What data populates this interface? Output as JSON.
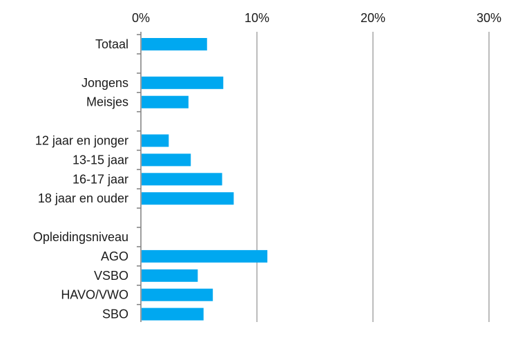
{
  "chart_data": {
    "type": "bar",
    "orientation": "horizontal",
    "title": "",
    "xlabel": "",
    "ylabel": "",
    "xlim": [
      0,
      30
    ],
    "xticks": [
      "0%",
      "10%",
      "20%",
      "30%"
    ],
    "xtick_values": [
      0,
      10,
      20,
      30
    ],
    "grid": true,
    "axis_position": "top",
    "bar_color": "#00a8f0",
    "categories": [
      "Totaal",
      "",
      "Jongens",
      "Meisjes",
      "",
      "12 jaar en jonger",
      "13-15 jaar",
      "16-17 jaar",
      "18 jaar en ouder",
      "",
      "Opleidingsniveau",
      "AGO",
      "VSBO",
      "HAVO/VWO",
      "SBO"
    ],
    "values": [
      5.7,
      null,
      7.1,
      4.1,
      null,
      2.4,
      4.3,
      7.0,
      8.0,
      null,
      null,
      10.9,
      4.9,
      6.2,
      5.4
    ]
  }
}
